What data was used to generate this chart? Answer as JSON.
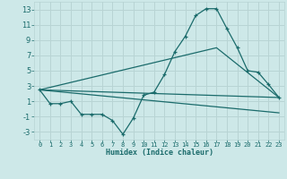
{
  "xlabel": "Humidex (Indice chaleur)",
  "background_color": "#cde8e8",
  "grid_color": "#b8d4d4",
  "line_color": "#1a6b6b",
  "xlim": [
    -0.5,
    23.5
  ],
  "ylim": [
    -4,
    14
  ],
  "xticks": [
    0,
    1,
    2,
    3,
    4,
    5,
    6,
    7,
    8,
    9,
    10,
    11,
    12,
    13,
    14,
    15,
    16,
    17,
    18,
    19,
    20,
    21,
    22,
    23
  ],
  "yticks": [
    -3,
    -1,
    1,
    3,
    5,
    7,
    9,
    11,
    13
  ],
  "series": [
    {
      "x": [
        0,
        1,
        2,
        3,
        4,
        5,
        6,
        7,
        8,
        9,
        10,
        11,
        12,
        13,
        14,
        15,
        16,
        17,
        18,
        19,
        20,
        21,
        22,
        23
      ],
      "y": [
        2.5,
        0.7,
        0.7,
        1.0,
        -0.7,
        -0.7,
        -0.7,
        -1.5,
        -3.3,
        -1.2,
        1.8,
        2.2,
        4.5,
        7.5,
        9.5,
        12.2,
        13.1,
        13.1,
        10.5,
        8.0,
        5.0,
        4.8,
        3.2,
        1.5
      ],
      "marker": true
    },
    {
      "x": [
        0,
        23
      ],
      "y": [
        2.5,
        1.5
      ],
      "marker": false
    },
    {
      "x": [
        0,
        23
      ],
      "y": [
        2.5,
        -0.5
      ],
      "marker": false
    },
    {
      "x": [
        0,
        17,
        23
      ],
      "y": [
        2.5,
        8.0,
        1.5
      ],
      "marker": false
    }
  ]
}
